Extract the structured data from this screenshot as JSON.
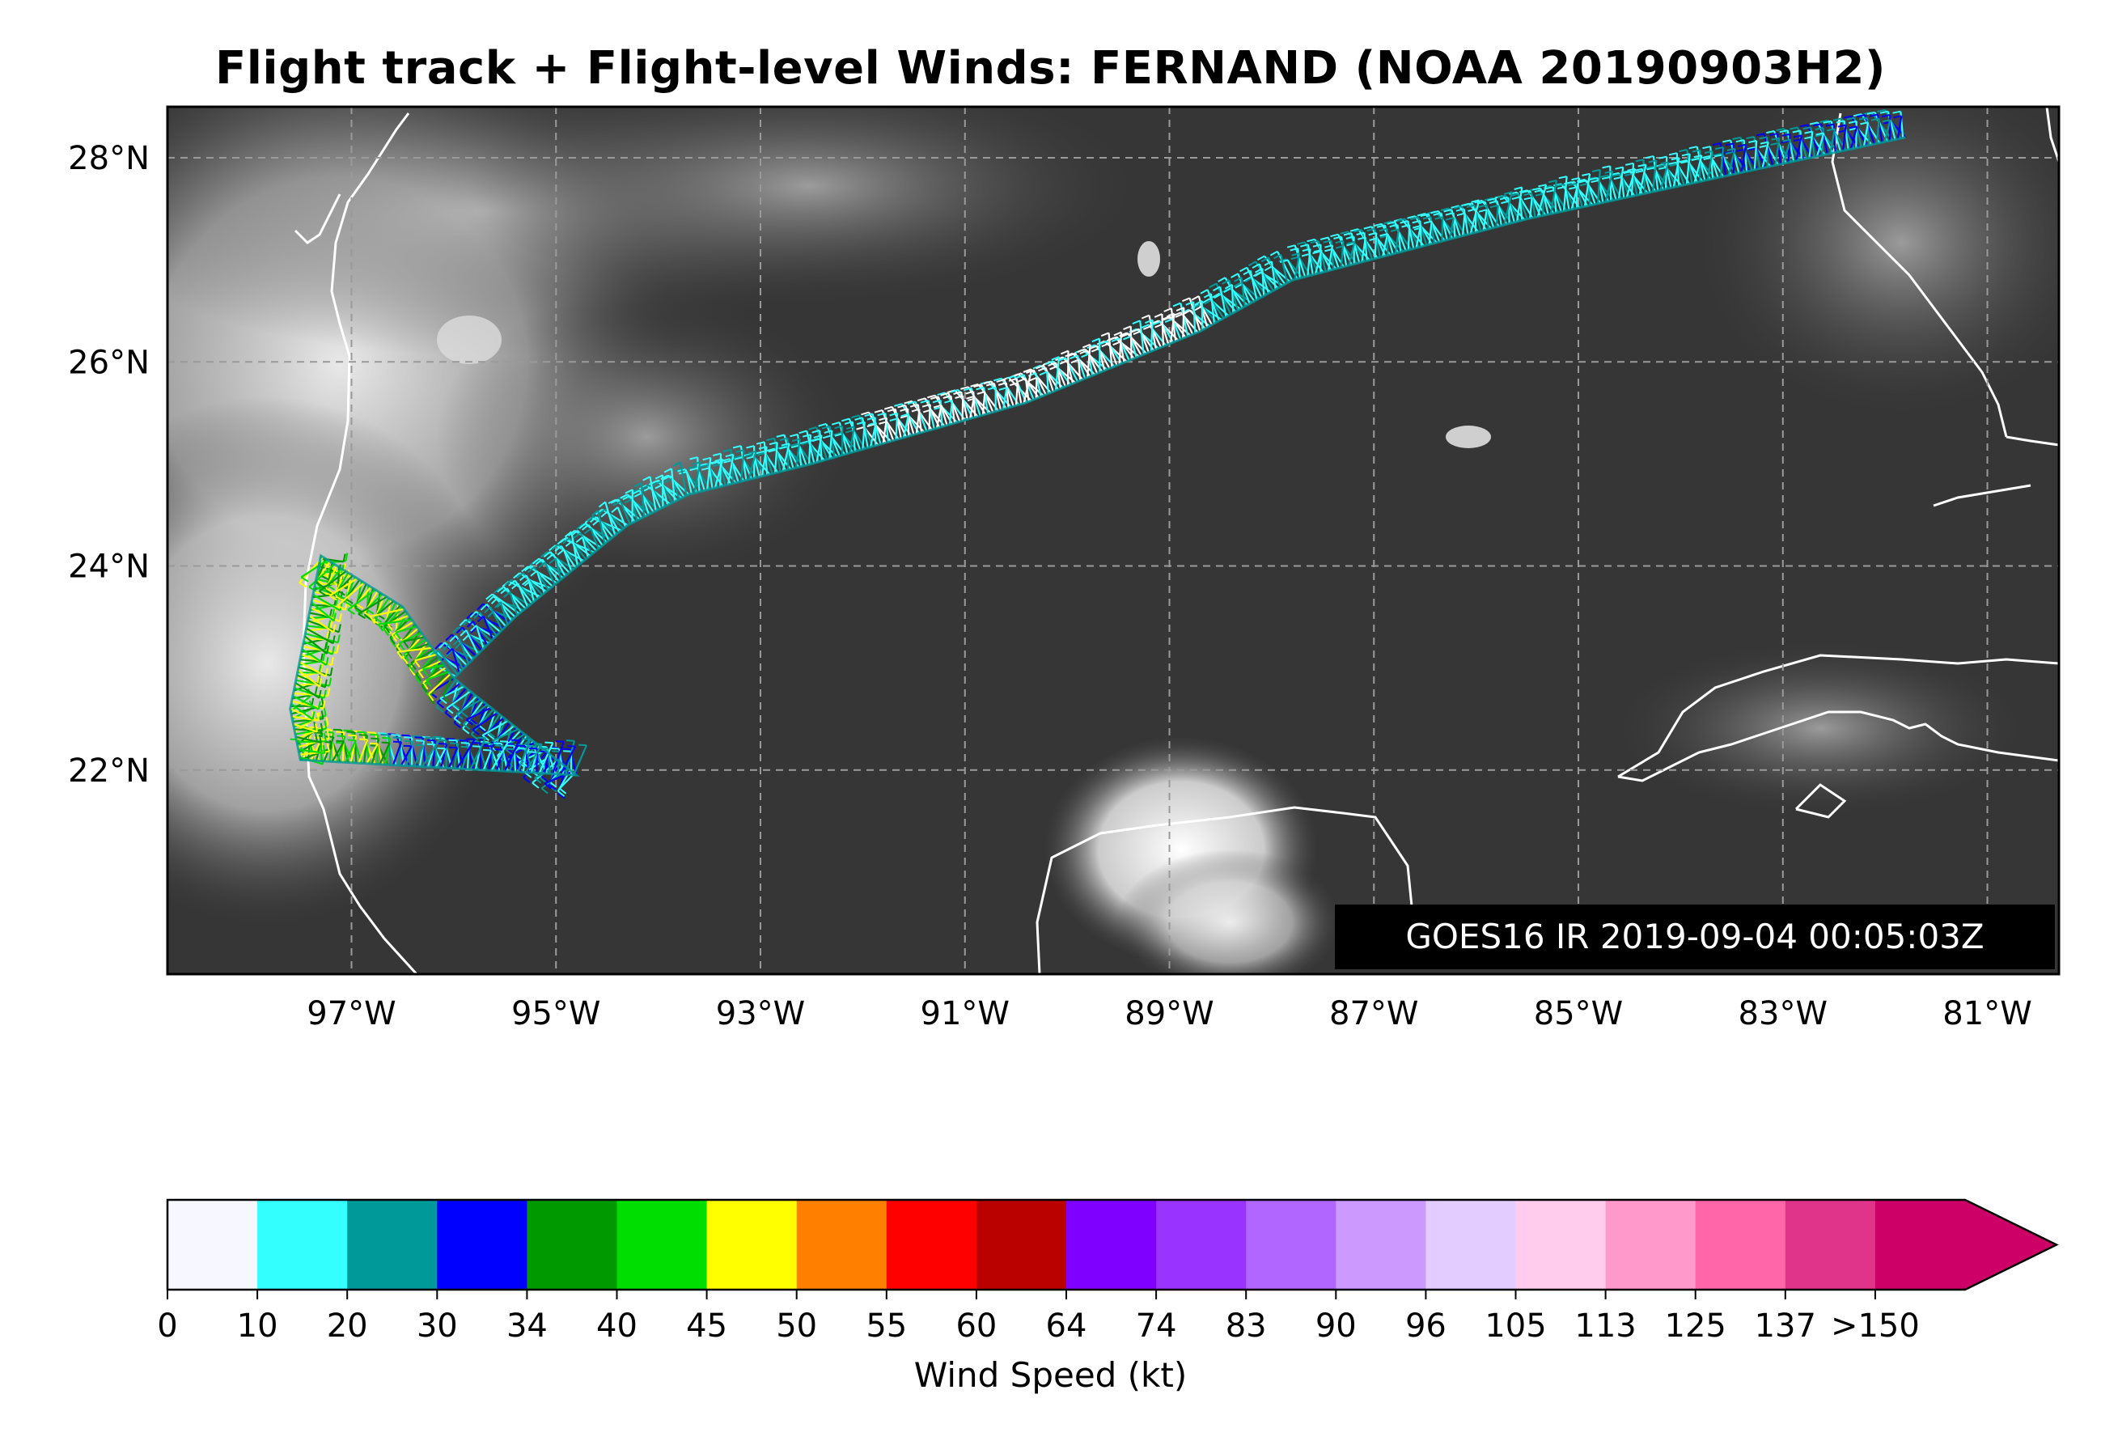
{
  "title": "Flight track + Flight-level Winds: FERNAND (NOAA 20190903H2)",
  "satellite_stamp": "GOES16 IR 2019-09-04 00:05:03Z",
  "map": {
    "lon_range": [
      -98.8,
      -80.3
    ],
    "lat_range": [
      20.0,
      28.5
    ],
    "lon_ticks": [
      {
        "value": -97,
        "label": "97°W"
      },
      {
        "value": -95,
        "label": "95°W"
      },
      {
        "value": -93,
        "label": "93°W"
      },
      {
        "value": -91,
        "label": "91°W"
      },
      {
        "value": -89,
        "label": "89°W"
      },
      {
        "value": -87,
        "label": "87°W"
      },
      {
        "value": -85,
        "label": "85°W"
      },
      {
        "value": -83,
        "label": "83°W"
      },
      {
        "value": -81,
        "label": "81°W"
      }
    ],
    "lat_ticks": [
      {
        "value": 22,
        "label": "22°N"
      },
      {
        "value": 24,
        "label": "24°N"
      },
      {
        "value": 26,
        "label": "26°N"
      },
      {
        "value": 28,
        "label": "28°N"
      }
    ],
    "grid": true,
    "background": "IR satellite imagery (grayscale clouds)",
    "coastline_color": "#ffffff"
  },
  "flight_track": {
    "barb_colors_seen": [
      "#ffffff",
      "#33ffff",
      "#009999",
      "#0000ff",
      "#009900",
      "#00dd00",
      "#ffff00"
    ],
    "path": [
      {
        "lon": -81.8,
        "lat": 28.2
      },
      {
        "lon": -83.2,
        "lat": 27.9
      },
      {
        "lon": -85.5,
        "lat": 27.4
      },
      {
        "lon": -87.8,
        "lat": 26.8
      },
      {
        "lon": -88.7,
        "lat": 26.3
      },
      {
        "lon": -90.4,
        "lat": 25.6
      },
      {
        "lon": -92.5,
        "lat": 25.0
      },
      {
        "lon": -93.7,
        "lat": 24.7
      },
      {
        "lon": -94.3,
        "lat": 24.4
      },
      {
        "lon": -95.4,
        "lat": 23.5
      },
      {
        "lon": -96.0,
        "lat": 22.9
      },
      {
        "lon": -94.8,
        "lat": 21.95
      },
      {
        "lon": -97.5,
        "lat": 22.1
      },
      {
        "lon": -97.6,
        "lat": 22.6
      },
      {
        "lon": -97.3,
        "lat": 24.1
      },
      {
        "lon": -96.5,
        "lat": 23.6
      },
      {
        "lon": -96.0,
        "lat": 22.9
      }
    ]
  },
  "colorbar": {
    "label": "Wind Speed (kt)",
    "has_extension_arrow": true,
    "bins": [
      {
        "label": "0",
        "color": "#f7f8ff"
      },
      {
        "label": "10",
        "color": "#33ffff"
      },
      {
        "label": "20",
        "color": "#009999"
      },
      {
        "label": "30",
        "color": "#0000ff"
      },
      {
        "label": "34",
        "color": "#009900"
      },
      {
        "label": "40",
        "color": "#00dd00"
      },
      {
        "label": "45",
        "color": "#ffff00"
      },
      {
        "label": "50",
        "color": "#ff8000"
      },
      {
        "label": "55",
        "color": "#ff0000"
      },
      {
        "label": "60",
        "color": "#bb0000"
      },
      {
        "label": "64",
        "color": "#7f00ff"
      },
      {
        "label": "74",
        "color": "#9933ff"
      },
      {
        "label": "83",
        "color": "#b066ff"
      },
      {
        "label": "90",
        "color": "#cc99ff"
      },
      {
        "label": "96",
        "color": "#e3ccff"
      },
      {
        "label": "105",
        "color": "#ffccee"
      },
      {
        "label": "113",
        "color": "#ff99cc"
      },
      {
        "label": "125",
        "color": "#ff66aa"
      },
      {
        "label": "137",
        "color": "#e0338a"
      },
      {
        "label": ">150",
        "color": "#cc0066"
      }
    ]
  }
}
